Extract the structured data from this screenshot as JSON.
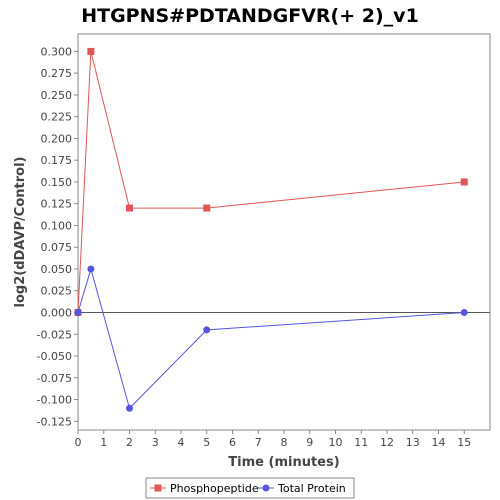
{
  "chart_data": {
    "type": "line",
    "title": "HTGPNS#PDTANDGFVR(+ 2)_v1",
    "xlabel": "Time (minutes)",
    "ylabel": "log2(dDAVP/Control)",
    "xlim": [
      0,
      16
    ],
    "ylim": [
      -0.135,
      0.32
    ],
    "xticks": [
      0,
      1,
      2,
      3,
      4,
      5,
      6,
      7,
      8,
      9,
      10,
      11,
      12,
      13,
      14,
      15
    ],
    "yticks": [
      -0.125,
      -0.1,
      -0.075,
      -0.05,
      -0.025,
      0.0,
      0.025,
      0.05,
      0.075,
      0.1,
      0.125,
      0.15,
      0.175,
      0.2,
      0.225,
      0.25,
      0.275,
      0.3
    ],
    "grid": false,
    "zero_line": true,
    "legend_position": "bottom",
    "series": [
      {
        "name": "Phosphopeptide",
        "color": "#e05555",
        "marker": "square",
        "x": [
          0,
          0.5,
          2,
          5,
          15
        ],
        "y": [
          0.0,
          0.3,
          0.12,
          0.12,
          0.15
        ]
      },
      {
        "name": "Total Protein",
        "color": "#5555e0",
        "marker": "circle",
        "x": [
          0,
          0.5,
          2,
          5,
          15
        ],
        "y": [
          0.0,
          0.05,
          -0.11,
          -0.02,
          0.0
        ]
      }
    ]
  }
}
